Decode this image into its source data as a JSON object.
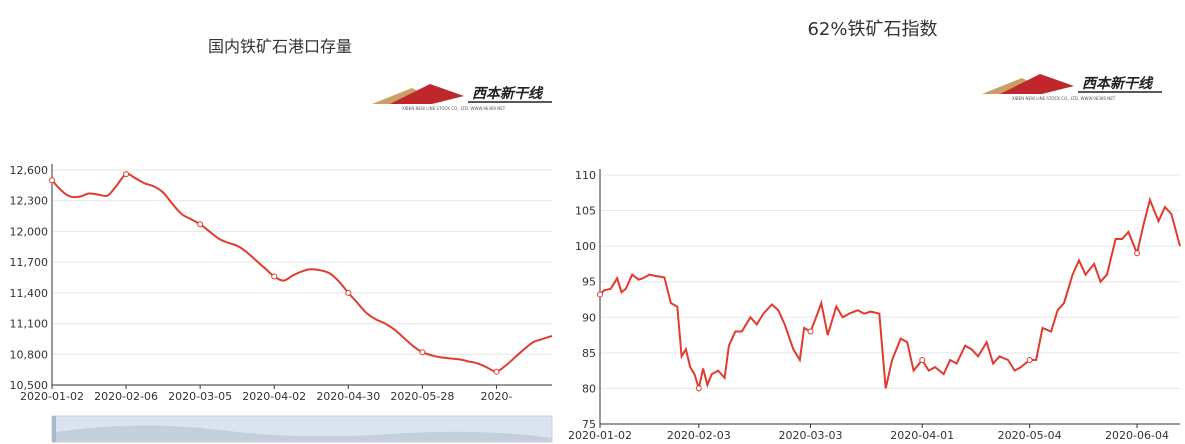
{
  "colors": {
    "line": "#e03b2e",
    "grid": "#e6e6e6",
    "axis": "#333333",
    "zoom_bg": "#dbe4ee",
    "logo_red": "#c0272d",
    "logo_gold": "#c9a063"
  },
  "logo": {
    "brand_text": "西本新干线",
    "sub_text": "XIBEN NEW LINE STOCK CO., LTD.  WWW.96369.NET"
  },
  "left_chart": {
    "title": "国内铁矿石港口存量",
    "y_tick_labels": [
      "10,500",
      "10,800",
      "11,100",
      "11,400",
      "11,700",
      "12,000",
      "12,300",
      "12,600"
    ],
    "x_tick_labels": [
      "2020-01-02",
      "2020-02-06",
      "2020-03-05",
      "2020-04-02",
      "2020-04-30",
      "2020-05-28",
      "2020-"
    ]
  },
  "right_chart": {
    "title": "62%铁矿石指数",
    "y_tick_labels": [
      "75",
      "80",
      "85",
      "90",
      "95",
      "100",
      "105",
      "110"
    ],
    "x_tick_labels": [
      "2020-01-02",
      "2020-02-03",
      "2020-03-03",
      "2020-04-01",
      "2020-05-04",
      "2020-06-04"
    ]
  },
  "chart_data": [
    {
      "type": "line",
      "title": "国内铁矿石港口存量",
      "xlabel": "",
      "ylabel": "",
      "ylim": [
        10500,
        12600
      ],
      "grid": true,
      "x_range_weeks": [
        0,
        27
      ],
      "x": [
        0,
        0.5,
        1,
        1.5,
        2,
        2.5,
        3,
        3.5,
        4,
        4.5,
        5,
        5.5,
        6,
        6.5,
        7,
        7.5,
        8,
        8.5,
        9,
        9.5,
        10,
        10.5,
        11,
        11.5,
        12,
        12.5,
        13,
        13.5,
        14,
        14.5,
        15,
        15.5,
        16,
        16.5,
        17,
        17.5,
        18,
        18.5,
        19,
        19.5,
        20,
        20.5,
        21,
        21.5,
        22,
        22.5,
        23,
        23.5,
        24,
        24.5,
        25,
        25.5,
        26,
        26.5,
        27
      ],
      "values": [
        12500,
        12400,
        12340,
        12340,
        12370,
        12360,
        12350,
        12450,
        12560,
        12520,
        12470,
        12440,
        12380,
        12270,
        12170,
        12120,
        12070,
        12000,
        11930,
        11890,
        11860,
        11800,
        11720,
        11640,
        11560,
        11520,
        11570,
        11610,
        11630,
        11620,
        11590,
        11510,
        11400,
        11300,
        11200,
        11140,
        11100,
        11040,
        10960,
        10880,
        10820,
        10790,
        10770,
        10760,
        10750,
        10730,
        10710,
        10670,
        10630,
        10690,
        10770,
        10850,
        10920,
        10950,
        10980
      ],
      "markers_x": [
        0,
        4,
        8,
        12,
        16,
        20,
        24
      ],
      "x_tick_labels": [
        "2020-01-02",
        "2020-02-06",
        "2020-03-05",
        "2020-04-02",
        "2020-04-30",
        "2020-05-28",
        "2020-"
      ],
      "y_tick_labels": [
        "10,500",
        "10,800",
        "11,100",
        "11,400",
        "11,700",
        "12,000",
        "12,300",
        "12,600"
      ]
    },
    {
      "type": "line",
      "title": "62%铁矿石指数",
      "xlabel": "",
      "ylabel": "",
      "ylim": [
        75,
        110
      ],
      "grid": true,
      "x_range_weeks": [
        0,
        27
      ],
      "x": [
        0,
        0.2,
        0.5,
        0.8,
        1.0,
        1.2,
        1.5,
        1.8,
        2.0,
        2.3,
        2.6,
        3.0,
        3.3,
        3.6,
        3.8,
        4.0,
        4.2,
        4.4,
        4.6,
        4.8,
        5.0,
        5.2,
        5.5,
        5.8,
        6.0,
        6.3,
        6.6,
        7.0,
        7.3,
        7.6,
        8.0,
        8.3,
        8.6,
        9.0,
        9.3,
        9.5,
        9.8,
        10.0,
        10.3,
        10.6,
        11.0,
        11.3,
        11.6,
        12.0,
        12.3,
        12.6,
        13.0,
        13.3,
        13.6,
        14.0,
        14.3,
        14.6,
        15.0,
        15.3,
        15.6,
        16.0,
        16.3,
        16.6,
        17.0,
        17.3,
        17.6,
        18.0,
        18.3,
        18.6,
        19.0,
        19.3,
        19.6,
        20.0,
        20.3,
        20.6,
        21.0,
        21.3,
        21.6,
        22.0,
        22.3,
        22.6,
        23.0,
        23.3,
        23.6,
        24.0,
        24.3,
        24.6,
        25.0,
        25.3,
        25.6,
        26.0,
        26.3,
        26.6,
        27.0
      ],
      "values": [
        93.2,
        93.8,
        94,
        95.5,
        93.5,
        94,
        96,
        95.3,
        95.5,
        96,
        95.8,
        95.6,
        92,
        91.5,
        84.5,
        85.5,
        83,
        82,
        80,
        82.8,
        80.5,
        82,
        82.5,
        81.5,
        86,
        88,
        88,
        90,
        89,
        90.5,
        91.8,
        91,
        89,
        85.5,
        84,
        88.5,
        88,
        89.5,
        92,
        87.5,
        91.5,
        90,
        90.5,
        91,
        90.5,
        90.8,
        90.5,
        80,
        84,
        87,
        86.5,
        82.5,
        84,
        82.5,
        83,
        82,
        84,
        83.5,
        86,
        85.5,
        84.5,
        86.5,
        83.5,
        84.5,
        84,
        82.5,
        83,
        84,
        84,
        88.5,
        88,
        91,
        92,
        96,
        98,
        96,
        97.5,
        95,
        96,
        101,
        101,
        102,
        99,
        103,
        106.5,
        103.5,
        105.5,
        104.5,
        100
      ],
      "markers_x": [
        0,
        4.6,
        9.8,
        15.0,
        20.0,
        25.0
      ],
      "x_tick_labels": [
        "2020-01-02",
        "2020-02-03",
        "2020-03-03",
        "2020-04-01",
        "2020-05-04",
        "2020-06-04"
      ],
      "y_tick_labels": [
        "75",
        "80",
        "85",
        "90",
        "95",
        "100",
        "105",
        "110"
      ]
    }
  ]
}
